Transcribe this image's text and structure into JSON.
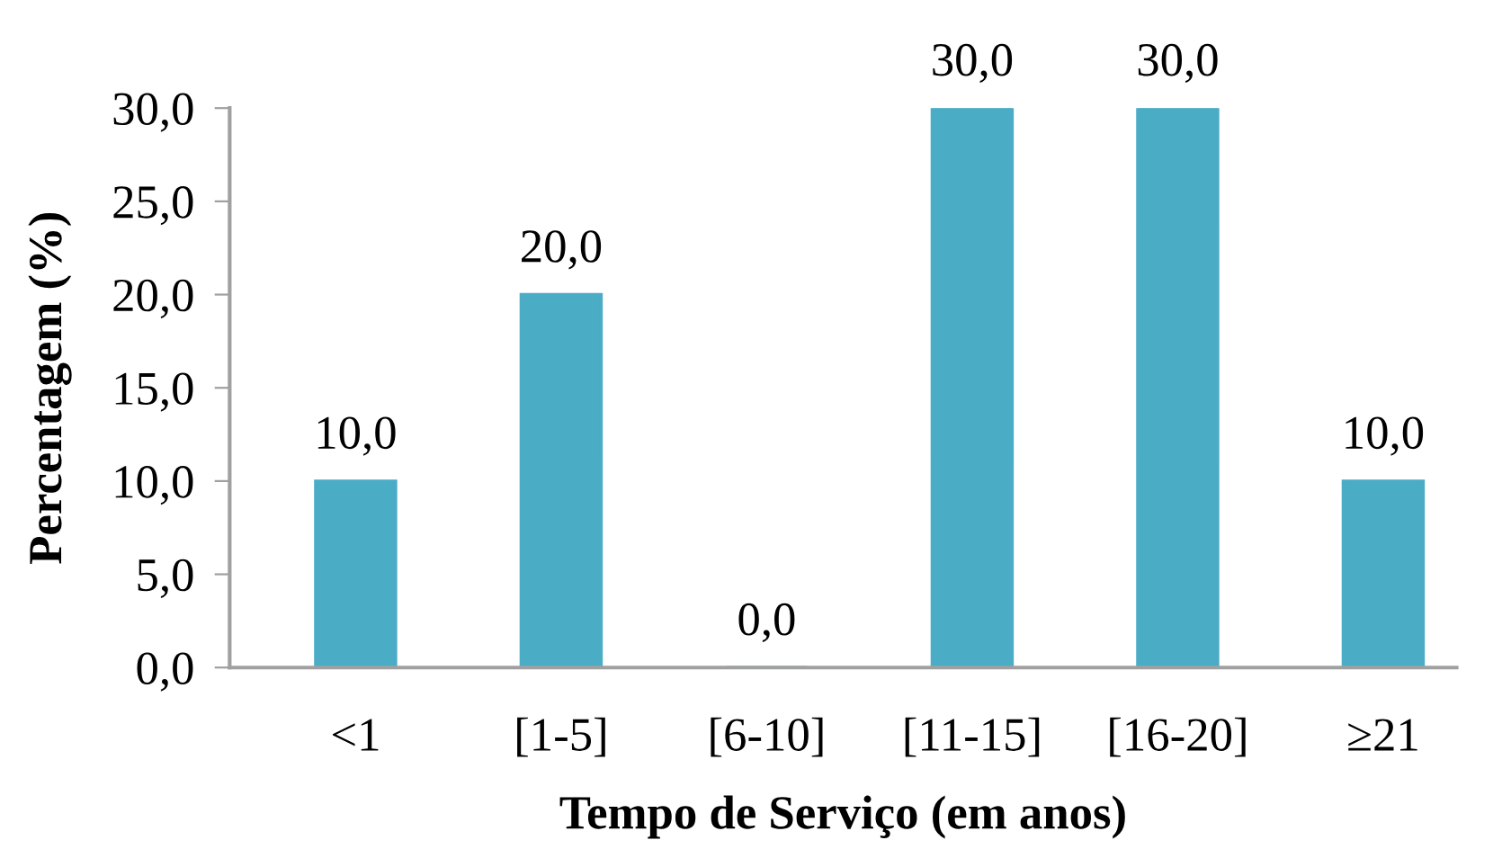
{
  "chart_data": {
    "type": "bar",
    "xlabel": "Tempo de Serviço (em anos)",
    "ylabel": "Percentagem (%)",
    "categories": [
      "<1",
      "[1-5]",
      "[6-10]",
      "[11-15]",
      "[16-20]",
      "≥21"
    ],
    "values": [
      10,
      20,
      0,
      30,
      30,
      10
    ],
    "value_labels": [
      "10,0",
      "20,0",
      "0,0",
      "30,0",
      "30,0",
      "10,0"
    ],
    "color": "#4bacc6",
    "ylim": [
      0,
      30
    ],
    "yticks": [
      {
        "value": 0,
        "label": "0,0"
      },
      {
        "value": 5,
        "label": "5,0"
      },
      {
        "value": 10,
        "label": "10,0"
      },
      {
        "value": 15,
        "label": "15,0"
      },
      {
        "value": 20,
        "label": "20,0"
      },
      {
        "value": 25,
        "label": "25,0"
      },
      {
        "value": 30,
        "label": "30,0"
      }
    ],
    "grid": false,
    "legend": false
  }
}
